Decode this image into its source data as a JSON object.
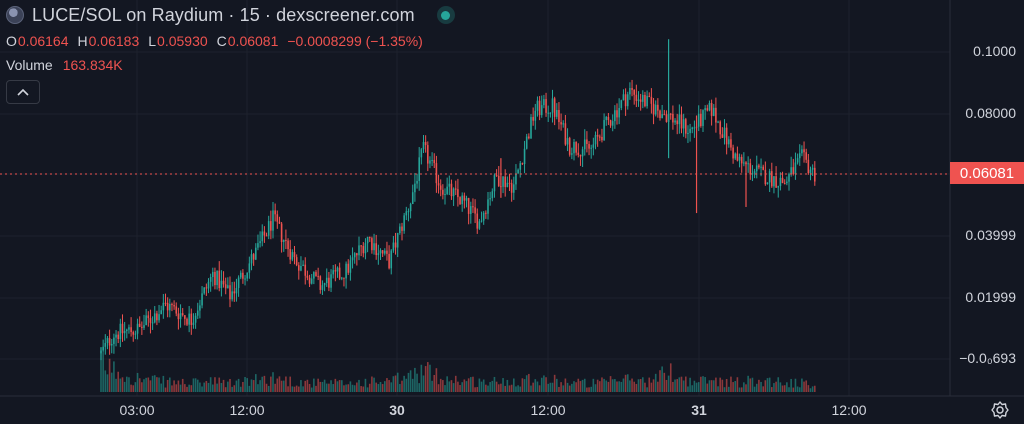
{
  "header": {
    "title": "LUCE/SOL on Raydium · 15 · dexscreener.com",
    "icon": "token-logo-icon",
    "status_icon": "live-status-icon"
  },
  "ohlc": {
    "o_key": "O",
    "o_val": "0.06164",
    "h_key": "H",
    "h_val": "0.06183",
    "l_key": "L",
    "l_val": "0.05930",
    "c_key": "C",
    "c_val": "0.06081",
    "change": "−0.0008299 (−1.35%)"
  },
  "volume": {
    "label": "Volume",
    "value": "163.834K"
  },
  "price_axis": {
    "labels": [
      "0.1000",
      "0.08000",
      "0.03999",
      "0.01999",
      "−0.0₀693"
    ],
    "current_price": "0.06081"
  },
  "time_axis": {
    "labels": [
      "03:00",
      "12:00",
      "30",
      "12:00",
      "31",
      "12:00"
    ]
  },
  "colors": {
    "background": "#131722",
    "up": "#26a69a",
    "down": "#ef5350",
    "grid": "#1e222d",
    "text": "#d1d4dc"
  },
  "chart_data": {
    "type": "candlestick",
    "interval": "15",
    "ylim": [
      -0.0069,
      0.105
    ],
    "current_price": 0.06081,
    "keypoints": [
      {
        "i": 0,
        "price": 0.002,
        "vol": 40
      },
      {
        "i": 6,
        "price": 0.0085,
        "vol": 30
      },
      {
        "i": 18,
        "price": 0.01,
        "vol": 18
      },
      {
        "i": 30,
        "price": 0.018,
        "vol": 14
      },
      {
        "i": 42,
        "price": 0.013,
        "vol": 12
      },
      {
        "i": 52,
        "price": 0.028,
        "vol": 14
      },
      {
        "i": 60,
        "price": 0.021,
        "vol": 12
      },
      {
        "i": 72,
        "price": 0.035,
        "vol": 16
      },
      {
        "i": 80,
        "price": 0.046,
        "vol": 20
      },
      {
        "i": 90,
        "price": 0.033,
        "vol": 14
      },
      {
        "i": 102,
        "price": 0.024,
        "vol": 12
      },
      {
        "i": 114,
        "price": 0.029,
        "vol": 12
      },
      {
        "i": 124,
        "price": 0.04,
        "vol": 14
      },
      {
        "i": 134,
        "price": 0.032,
        "vol": 14
      },
      {
        "i": 144,
        "price": 0.052,
        "vol": 22
      },
      {
        "i": 150,
        "price": 0.069,
        "vol": 30
      },
      {
        "i": 158,
        "price": 0.057,
        "vol": 20
      },
      {
        "i": 168,
        "price": 0.052,
        "vol": 16
      },
      {
        "i": 176,
        "price": 0.045,
        "vol": 14
      },
      {
        "i": 184,
        "price": 0.06,
        "vol": 14
      },
      {
        "i": 192,
        "price": 0.057,
        "vol": 16
      },
      {
        "i": 202,
        "price": 0.082,
        "vol": 20
      },
      {
        "i": 210,
        "price": 0.083,
        "vol": 16
      },
      {
        "i": 218,
        "price": 0.07,
        "vol": 14
      },
      {
        "i": 228,
        "price": 0.069,
        "vol": 12
      },
      {
        "i": 236,
        "price": 0.078,
        "vol": 14
      },
      {
        "i": 246,
        "price": 0.088,
        "vol": 18
      },
      {
        "i": 256,
        "price": 0.083,
        "vol": 14
      },
      {
        "i": 264,
        "price": 0.08,
        "vol": 30
      },
      {
        "i": 274,
        "price": 0.075,
        "vol": 14
      },
      {
        "i": 284,
        "price": 0.082,
        "vol": 16
      },
      {
        "i": 296,
        "price": 0.065,
        "vol": 14
      },
      {
        "i": 306,
        "price": 0.061,
        "vol": 16
      },
      {
        "i": 318,
        "price": 0.058,
        "vol": 14
      },
      {
        "i": 326,
        "price": 0.066,
        "vol": 12
      },
      {
        "i": 332,
        "price": 0.0608,
        "vol": 8
      }
    ]
  }
}
